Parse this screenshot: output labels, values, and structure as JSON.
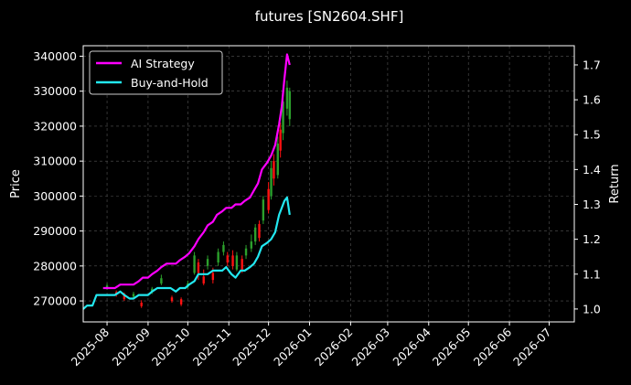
{
  "chart_data": {
    "type": "line",
    "title": "futures [SN2604.SHF]",
    "ylabel_left": "Price",
    "ylabel_right": "Return",
    "xlabel": "",
    "x_ticks": [
      "2025-08",
      "2025-09",
      "2025-10",
      "2025-11",
      "2025-12",
      "2026-01",
      "2026-02",
      "2026-03",
      "2026-04",
      "2026-05",
      "2026-06",
      "2026-07"
    ],
    "xlim": [
      "2025-07-14",
      "2026-07-20"
    ],
    "ylim_price": [
      264000,
      343000
    ],
    "ylim_return": [
      0.963,
      1.755
    ],
    "y_ticks_price": [
      270000,
      280000,
      290000,
      300000,
      310000,
      320000,
      330000,
      340000
    ],
    "y_ticks_return": [
      1.0,
      1.1,
      1.2,
      1.3,
      1.4,
      1.5,
      1.6,
      1.7
    ],
    "grid": true,
    "legend_position": "top-left",
    "colors": {
      "ai": "#ff00ff",
      "bh": "#22e8f0",
      "up": "#2ca02c",
      "down": "#ff1111",
      "grid": "#555555",
      "bg": "#000000"
    },
    "series": [
      {
        "name": "AI Strategy",
        "axis": "return",
        "points": [
          [
            "2025-07-29",
            1.06
          ],
          [
            "2025-08-01",
            1.06
          ],
          [
            "2025-08-04",
            1.06
          ],
          [
            "2025-08-07",
            1.06
          ],
          [
            "2025-08-11",
            1.07
          ],
          [
            "2025-08-14",
            1.07
          ],
          [
            "2025-08-18",
            1.07
          ],
          [
            "2025-08-21",
            1.07
          ],
          [
            "2025-08-25",
            1.08
          ],
          [
            "2025-08-28",
            1.09
          ],
          [
            "2025-09-01",
            1.09
          ],
          [
            "2025-09-04",
            1.1
          ],
          [
            "2025-09-08",
            1.11
          ],
          [
            "2025-09-11",
            1.12
          ],
          [
            "2025-09-15",
            1.13
          ],
          [
            "2025-09-18",
            1.13
          ],
          [
            "2025-09-22",
            1.13
          ],
          [
            "2025-09-25",
            1.14
          ],
          [
            "2025-09-29",
            1.15
          ],
          [
            "2025-10-02",
            1.16
          ],
          [
            "2025-10-06",
            1.18
          ],
          [
            "2025-10-09",
            1.2
          ],
          [
            "2025-10-13",
            1.22
          ],
          [
            "2025-10-16",
            1.24
          ],
          [
            "2025-10-20",
            1.25
          ],
          [
            "2025-10-23",
            1.27
          ],
          [
            "2025-10-27",
            1.28
          ],
          [
            "2025-10-30",
            1.29
          ],
          [
            "2025-11-03",
            1.29
          ],
          [
            "2025-11-06",
            1.3
          ],
          [
            "2025-11-10",
            1.3
          ],
          [
            "2025-11-13",
            1.31
          ],
          [
            "2025-11-17",
            1.32
          ],
          [
            "2025-11-20",
            1.34
          ],
          [
            "2025-11-23",
            1.36
          ],
          [
            "2025-11-26",
            1.4
          ],
          [
            "2025-11-30",
            1.42
          ],
          [
            "2025-12-03",
            1.44
          ],
          [
            "2025-12-06",
            1.47
          ],
          [
            "2025-12-09",
            1.53
          ],
          [
            "2025-12-11",
            1.58
          ],
          [
            "2025-12-13",
            1.66
          ],
          [
            "2025-12-15",
            1.73
          ],
          [
            "2025-12-17",
            1.7
          ]
        ]
      },
      {
        "name": "Buy-and-Hold",
        "axis": "return",
        "points": [
          [
            "2025-07-14",
            1.0
          ],
          [
            "2025-07-17",
            1.01
          ],
          [
            "2025-07-21",
            1.01
          ],
          [
            "2025-07-24",
            1.04
          ],
          [
            "2025-07-28",
            1.04
          ],
          [
            "2025-07-31",
            1.04
          ],
          [
            "2025-08-04",
            1.04
          ],
          [
            "2025-08-07",
            1.04
          ],
          [
            "2025-08-11",
            1.05
          ],
          [
            "2025-08-14",
            1.04
          ],
          [
            "2025-08-18",
            1.03
          ],
          [
            "2025-08-21",
            1.03
          ],
          [
            "2025-08-25",
            1.04
          ],
          [
            "2025-08-28",
            1.04
          ],
          [
            "2025-09-01",
            1.04
          ],
          [
            "2025-09-04",
            1.05
          ],
          [
            "2025-09-08",
            1.06
          ],
          [
            "2025-09-11",
            1.06
          ],
          [
            "2025-09-15",
            1.06
          ],
          [
            "2025-09-18",
            1.06
          ],
          [
            "2025-09-22",
            1.05
          ],
          [
            "2025-09-25",
            1.06
          ],
          [
            "2025-09-29",
            1.06
          ],
          [
            "2025-10-02",
            1.07
          ],
          [
            "2025-10-06",
            1.08
          ],
          [
            "2025-10-09",
            1.1
          ],
          [
            "2025-10-13",
            1.1
          ],
          [
            "2025-10-16",
            1.1
          ],
          [
            "2025-10-20",
            1.11
          ],
          [
            "2025-10-23",
            1.11
          ],
          [
            "2025-10-27",
            1.11
          ],
          [
            "2025-10-30",
            1.12
          ],
          [
            "2025-11-03",
            1.1
          ],
          [
            "2025-11-06",
            1.09
          ],
          [
            "2025-11-10",
            1.11
          ],
          [
            "2025-11-13",
            1.11
          ],
          [
            "2025-11-17",
            1.12
          ],
          [
            "2025-11-20",
            1.13
          ],
          [
            "2025-11-23",
            1.15
          ],
          [
            "2025-11-26",
            1.18
          ],
          [
            "2025-11-30",
            1.19
          ],
          [
            "2025-12-03",
            1.2
          ],
          [
            "2025-12-06",
            1.22
          ],
          [
            "2025-12-09",
            1.27
          ],
          [
            "2025-12-11",
            1.29
          ],
          [
            "2025-12-13",
            1.31
          ],
          [
            "2025-12-15",
            1.32
          ],
          [
            "2025-12-17",
            1.27
          ]
        ]
      }
    ],
    "candles": [
      {
        "date": "2025-08-01",
        "open": 273700,
        "close": 274400,
        "high": 275000,
        "low": 273200
      },
      {
        "date": "2025-08-08",
        "open": 272500,
        "close": 272000,
        "high": 273000,
        "low": 271200
      },
      {
        "date": "2025-08-14",
        "open": 272000,
        "close": 270500,
        "high": 272400,
        "low": 270000
      },
      {
        "date": "2025-08-21",
        "open": 271200,
        "close": 272000,
        "high": 272600,
        "low": 270800
      },
      {
        "date": "2025-08-27",
        "open": 269500,
        "close": 268500,
        "high": 270200,
        "low": 268000
      },
      {
        "date": "2025-09-04",
        "open": 272500,
        "close": 273500,
        "high": 274000,
        "low": 272000
      },
      {
        "date": "2025-09-11",
        "open": 275000,
        "close": 276500,
        "high": 277500,
        "low": 274500
      },
      {
        "date": "2025-09-19",
        "open": 271000,
        "close": 270000,
        "high": 271500,
        "low": 269500
      },
      {
        "date": "2025-09-26",
        "open": 270500,
        "close": 269000,
        "high": 271000,
        "low": 268500
      },
      {
        "date": "2025-10-01",
        "open": 274000,
        "close": 275000,
        "high": 275800,
        "low": 273500
      },
      {
        "date": "2025-10-06",
        "open": 278000,
        "close": 283000,
        "high": 284000,
        "low": 277500
      },
      {
        "date": "2025-10-09",
        "open": 281000,
        "close": 278000,
        "high": 282000,
        "low": 276000
      },
      {
        "date": "2025-10-13",
        "open": 277000,
        "close": 275000,
        "high": 279000,
        "low": 274500
      },
      {
        "date": "2025-10-16",
        "open": 280000,
        "close": 282000,
        "high": 283000,
        "low": 279000
      },
      {
        "date": "2025-10-20",
        "open": 278000,
        "close": 276000,
        "high": 279500,
        "low": 275000
      },
      {
        "date": "2025-10-24",
        "open": 281000,
        "close": 284000,
        "high": 285000,
        "low": 280000
      },
      {
        "date": "2025-10-28",
        "open": 284000,
        "close": 286000,
        "high": 287000,
        "low": 283000
      },
      {
        "date": "2025-10-31",
        "open": 283000,
        "close": 281000,
        "high": 284000,
        "low": 280000
      },
      {
        "date": "2025-11-04",
        "open": 283000,
        "close": 280000,
        "high": 284500,
        "low": 279000
      },
      {
        "date": "2025-11-07",
        "open": 279000,
        "close": 283000,
        "high": 284000,
        "low": 278500
      },
      {
        "date": "2025-11-11",
        "open": 282000,
        "close": 279000,
        "high": 283000,
        "low": 278000
      },
      {
        "date": "2025-11-14",
        "open": 283000,
        "close": 285000,
        "high": 286000,
        "low": 282000
      },
      {
        "date": "2025-11-18",
        "open": 285000,
        "close": 287000,
        "high": 289000,
        "low": 284000
      },
      {
        "date": "2025-11-21",
        "open": 287000,
        "close": 291000,
        "high": 292000,
        "low": 286000
      },
      {
        "date": "2025-11-24",
        "open": 292000,
        "close": 288000,
        "high": 293000,
        "low": 287000
      },
      {
        "date": "2025-11-27",
        "open": 293000,
        "close": 299000,
        "high": 300000,
        "low": 292000
      },
      {
        "date": "2025-12-01",
        "open": 302000,
        "close": 296000,
        "high": 304000,
        "low": 295000
      },
      {
        "date": "2025-12-03",
        "open": 300000,
        "close": 308000,
        "high": 310000,
        "low": 299000
      },
      {
        "date": "2025-12-05",
        "open": 310000,
        "close": 305000,
        "high": 312000,
        "low": 303000
      },
      {
        "date": "2025-12-08",
        "open": 306000,
        "close": 315000,
        "high": 317000,
        "low": 305000
      },
      {
        "date": "2025-12-10",
        "open": 319000,
        "close": 313000,
        "high": 321000,
        "low": 311000
      },
      {
        "date": "2025-12-12",
        "open": 318000,
        "close": 327000,
        "high": 329000,
        "low": 316000
      },
      {
        "date": "2025-12-15",
        "open": 325000,
        "close": 331000,
        "high": 333000,
        "low": 323000
      },
      {
        "date": "2025-12-17",
        "open": 322000,
        "close": 330000,
        "high": 331000,
        "low": 320000
      }
    ]
  }
}
